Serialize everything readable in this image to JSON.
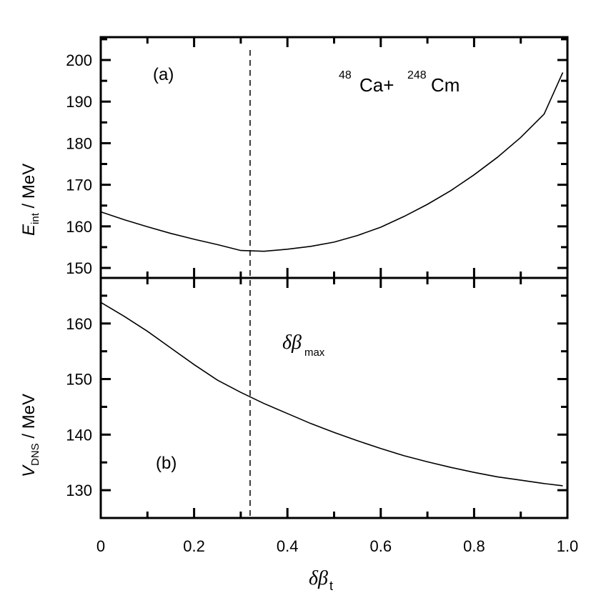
{
  "chart_data": [
    {
      "type": "line",
      "panel_label": "(a)",
      "annotation": {
        "pre1": "48",
        "t1": "Ca+",
        "pre2": "248",
        "t2": "Cm"
      },
      "ylabel": {
        "main": "E",
        "sub": "int",
        "unit": " / MeV"
      },
      "ylim": [
        147.6,
        205.5
      ],
      "yticks": [
        150,
        160,
        170,
        180,
        190,
        200
      ],
      "x": [
        0,
        0.05,
        0.1,
        0.15,
        0.2,
        0.25,
        0.3,
        0.35,
        0.4,
        0.45,
        0.5,
        0.55,
        0.6,
        0.65,
        0.7,
        0.75,
        0.8,
        0.85,
        0.9,
        0.95,
        0.99
      ],
      "y": [
        163.5,
        161.6,
        159.9,
        158.3,
        156.9,
        155.6,
        154.2,
        154,
        154.5,
        155.2,
        156.2,
        157.8,
        159.8,
        162.4,
        165.3,
        168.6,
        172.4,
        176.6,
        181.4,
        187,
        197
      ]
    },
    {
      "type": "line",
      "panel_label": "(b)",
      "annotation": {
        "main": "δβ",
        "sub": "max"
      },
      "ylabel": {
        "main": "V",
        "sub": "DNS",
        "unit": " / MeV"
      },
      "ylim": [
        125,
        168.2
      ],
      "yticks": [
        130,
        140,
        150,
        160
      ],
      "x": [
        0,
        0.05,
        0.1,
        0.15,
        0.2,
        0.25,
        0.3,
        0.35,
        0.4,
        0.45,
        0.5,
        0.55,
        0.6,
        0.65,
        0.7,
        0.75,
        0.8,
        0.85,
        0.9,
        0.95,
        0.99
      ],
      "y": [
        163.8,
        161.3,
        158.6,
        155.6,
        152.6,
        149.8,
        147.6,
        145.6,
        143.8,
        142,
        140.4,
        138.9,
        137.5,
        136.2,
        135.1,
        134.1,
        133.2,
        132.4,
        131.8,
        131.2,
        130.8
      ]
    }
  ],
  "xaxis": {
    "label_main": "δβ",
    "label_sub": "t",
    "xlim": [
      0,
      1
    ],
    "xticks": [
      "0",
      "0.2",
      "0.4",
      "0.6",
      "0.8",
      "1.0"
    ],
    "xtick_values": [
      0,
      0.2,
      0.4,
      0.6,
      0.8,
      1.0
    ]
  },
  "vline_x": 0.32
}
